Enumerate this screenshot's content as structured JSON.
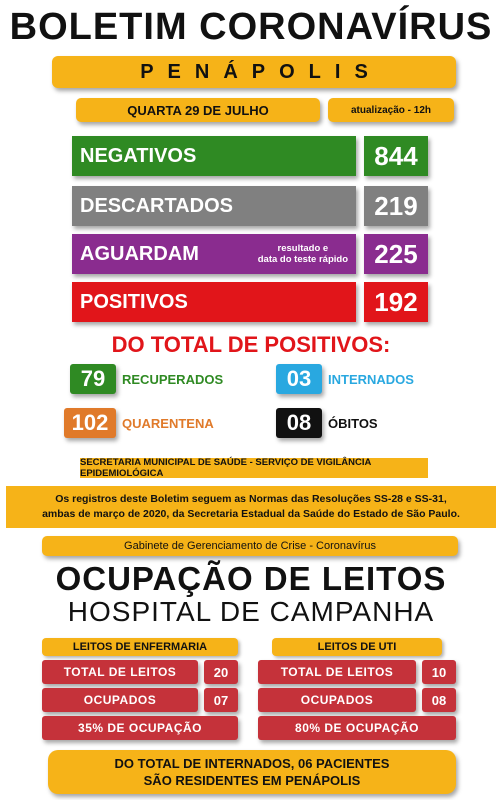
{
  "header": {
    "title": "BOLETIM CORONAVÍRUS",
    "city": "PENÁPOLIS",
    "date": "QUARTA 29 DE JULHO",
    "update": "atualização - 12h"
  },
  "stats": {
    "negativos": {
      "label": "NEGATIVOS",
      "value": "844",
      "color": "#2f8a23"
    },
    "descartados": {
      "label": "DESCARTADOS",
      "value": "219",
      "color": "#808080"
    },
    "aguardam": {
      "label": "AGUARDAM",
      "note_line1": "resultado e",
      "note_line2": "data do teste rápido",
      "value": "225",
      "color": "#8a2c8f"
    },
    "positivos": {
      "label": "POSITIVOS",
      "value": "192",
      "color": "#e1151a"
    }
  },
  "positivos_breakdown": {
    "title": "DO TOTAL DE POSITIVOS:",
    "recuperados": {
      "value": "79",
      "label": "RECUPERADOS",
      "color": "#2f8a23"
    },
    "internados": {
      "value": "03",
      "label": "INTERNADOS",
      "color": "#29a8e0"
    },
    "quarentena": {
      "value": "102",
      "label": "QUARENTENA",
      "color": "#e07a2a"
    },
    "obitos": {
      "value": "08",
      "label": "ÓBITOS",
      "color": "#111111"
    }
  },
  "secretaria": "SECRETARIA MUNICIPAL DE SAÚDE - SERVIÇO DE VIGILÂNCIA EPIDEMIOLÓGICA",
  "normas": {
    "line1": "Os registros deste Boletim seguem as Normas das Resoluções SS-28 e SS-31,",
    "line2": "ambas de março de 2020, da Secretaria Estadual da Saúde do Estado de São Paulo."
  },
  "gabinete": "Gabinete de Gerenciamento de Crise - Coronavírus",
  "ocupacao": {
    "title": "OCUPAÇÃO DE LEITOS",
    "subtitle": "HOSPITAL DE CAMPANHA",
    "enfermaria": {
      "header": "LEITOS DE ENFERMARIA",
      "total_label": "TOTAL DE LEITOS",
      "total_value": "20",
      "ocupados_label": "OCUPADOS",
      "ocupados_value": "07",
      "percent_label": "35% DE OCUPAÇÃO"
    },
    "uti": {
      "header": "LEITOS DE UTI",
      "total_label": "TOTAL DE LEITOS",
      "total_value": "10",
      "ocupados_label": "OCUPADOS",
      "ocupados_value": "08",
      "percent_label": "80% DE OCUPAÇÃO"
    }
  },
  "footer": {
    "line1": "DO TOTAL DE INTERNADOS, 06 PACIENTES",
    "line2": "SÃO RESIDENTES EM PENÁPOLIS"
  },
  "colors": {
    "accent_yellow": "#f6b318",
    "row_red": "#c5323a"
  }
}
